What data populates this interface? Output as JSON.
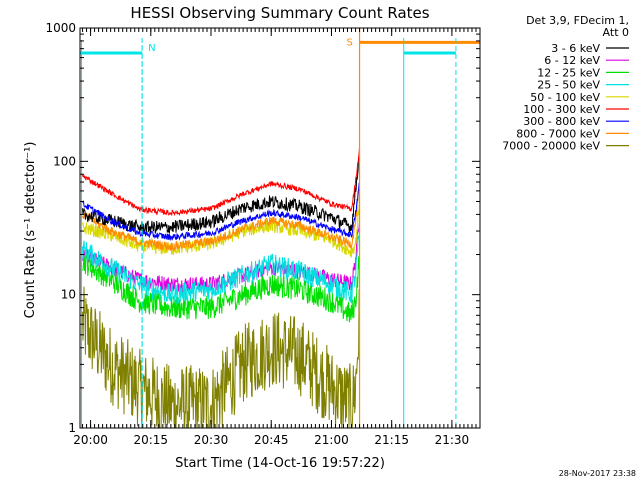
{
  "chart_data": {
    "type": "line",
    "title": "HESSI Observing Summary Count Rates",
    "xlabel": "Start Time (14-Oct-16 19:57:22)",
    "ylabel": "Count Rate (s⁻¹ detector⁻¹)",
    "y_scale": "log",
    "ylim": [
      1,
      1000
    ],
    "xlim": [
      "19:57:22",
      "21:37:00"
    ],
    "x_ticks": [
      "20:00",
      "20:15",
      "20:30",
      "20:45",
      "21:00",
      "21:15",
      "21:30"
    ],
    "y_ticks": [
      "1",
      "10",
      "100",
      "1000"
    ],
    "legend_header": [
      "Det 3,9, FDecim 1,",
      "Att 0"
    ],
    "legend_position": "right",
    "timestamp": "28-Nov-2017 23:38",
    "flags": [
      {
        "label": "N",
        "color": "#00e6e6",
        "start": "19:57:30",
        "end": "20:12:50",
        "level": 650
      },
      {
        "label": "S",
        "color": "#ff8c00",
        "start": "21:07:00",
        "end": "21:37:00",
        "level": 780
      },
      {
        "label": "",
        "color": "#00e6e6",
        "start": "21:18:00",
        "end": "21:31:00",
        "level": 650
      }
    ],
    "vlines": [
      {
        "time": "20:12:50",
        "color": "#00e6e6",
        "style": "dashed"
      },
      {
        "time": "21:18:00",
        "color": "#00e6e6",
        "style": "solid"
      },
      {
        "time": "21:31:00",
        "color": "#00e6e6",
        "style": "dashed"
      }
    ],
    "times": [
      "19:58",
      "20:05",
      "20:12",
      "20:20",
      "20:30",
      "20:38",
      "20:45",
      "20:52",
      "21:00",
      "21:05",
      "21:06",
      "21:07"
    ],
    "series": [
      {
        "name": "3 - 6 keV",
        "color": "#000000",
        "noise": 0.05,
        "values": [
          40,
          36,
          32,
          32,
          35,
          45,
          50,
          46,
          38,
          32,
          60,
          120
        ]
      },
      {
        "name": "6 - 12 keV",
        "color": "#e000e0",
        "noise": 0.06,
        "values": [
          20,
          16,
          13,
          12,
          12,
          14,
          16,
          15,
          13,
          12,
          18,
          40
        ]
      },
      {
        "name": "12 - 25 keV",
        "color": "#00e000",
        "noise": 0.09,
        "values": [
          18,
          13,
          9,
          8,
          8,
          10,
          12,
          11,
          9,
          7,
          9,
          20
        ]
      },
      {
        "name": "25 - 50 keV",
        "color": "#00e0e0",
        "noise": 0.08,
        "values": [
          22,
          16,
          12,
          10,
          11,
          14,
          17,
          15,
          12,
          10,
          14,
          30
        ]
      },
      {
        "name": "50 - 100 keV",
        "color": "#d8d800",
        "noise": 0.05,
        "values": [
          32,
          28,
          23,
          22,
          24,
          30,
          33,
          30,
          26,
          21,
          24,
          50
        ]
      },
      {
        "name": "100 - 300 keV",
        "color": "#ff0000",
        "noise": 0.02,
        "values": [
          78,
          58,
          44,
          41,
          44,
          57,
          68,
          62,
          48,
          44,
          70,
          125
        ]
      },
      {
        "name": "300 - 800 keV",
        "color": "#0000ff",
        "noise": 0.025,
        "values": [
          48,
          36,
          29,
          27,
          29,
          36,
          41,
          38,
          31,
          28,
          40,
          70
        ]
      },
      {
        "name": "800 - 7000 keV",
        "color": "#ff8c00",
        "noise": 0.035,
        "values": [
          40,
          30,
          25,
          23,
          25,
          31,
          36,
          33,
          27,
          24,
          35,
          65
        ]
      },
      {
        "name": "7000 - 20000 keV",
        "color": "#808000",
        "noise": 0.3,
        "values": [
          6,
          3,
          2,
          1.5,
          1.5,
          3,
          4,
          3.5,
          2,
          1.5,
          2,
          7
        ]
      }
    ]
  }
}
